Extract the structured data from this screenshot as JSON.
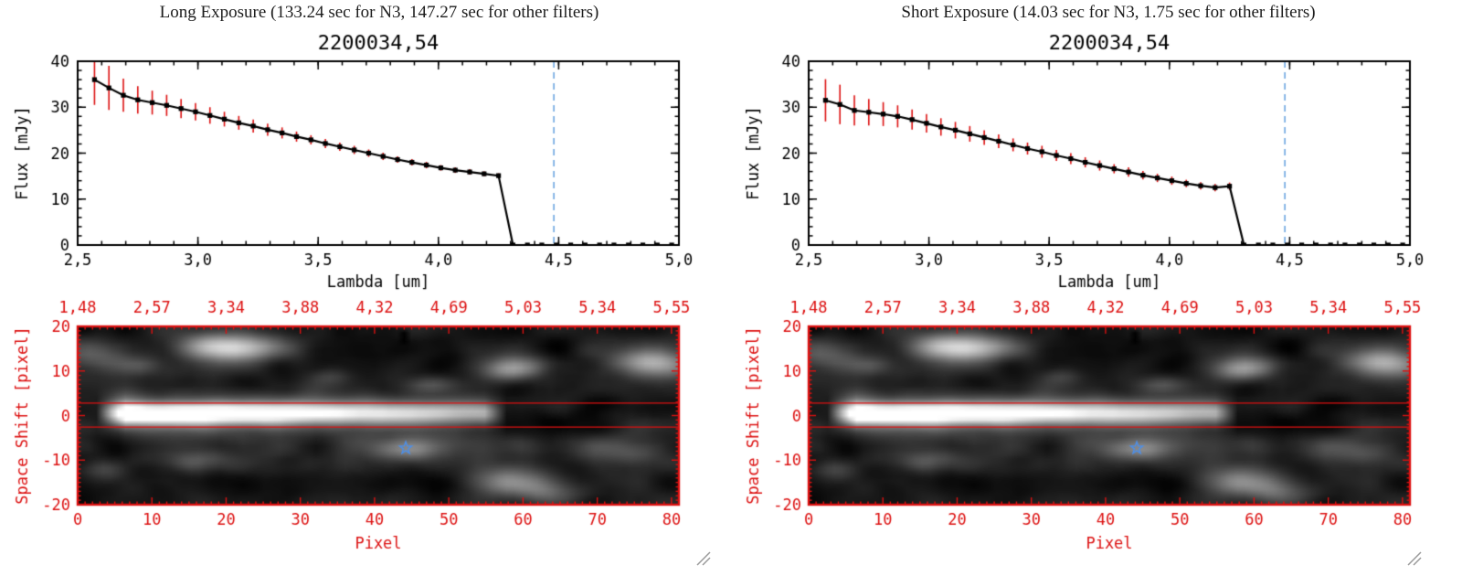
{
  "panels": [
    {
      "id": "long-exposure",
      "header": "Long Exposure (133.24 sec for N3, 147.27 sec for other filters)"
    },
    {
      "id": "short-exposure",
      "header": "Short Exposure (14.03 sec for N3, 1.75 sec for other filters)"
    }
  ],
  "colors": {
    "plot_red": "#dd1111",
    "dashed_blue": "#6ca6e0",
    "star_blue": "#4d8fe8",
    "axis_black": "#000000",
    "background": "#ffffff"
  },
  "chart_data": [
    {
      "type": "line",
      "panel": "long-exposure",
      "title": "2200034,54",
      "xlabel": "Lambda [um]",
      "ylabel": "Flux [mJy]",
      "xlim": [
        2.5,
        5.0
      ],
      "ylim": [
        0,
        40
      ],
      "xtick_values": [
        2.5,
        3.0,
        3.5,
        4.0,
        4.5,
        5.0
      ],
      "xtick_labels": [
        "2,5",
        "3,0",
        "3,5",
        "4,0",
        "4,5",
        "5,0"
      ],
      "ytick_values": [
        0,
        10,
        20,
        30,
        40
      ],
      "marker": "filled-square",
      "vline_x": 4.48,
      "x": [
        2.57,
        2.63,
        2.69,
        2.75,
        2.81,
        2.87,
        2.93,
        2.99,
        3.05,
        3.11,
        3.17,
        3.23,
        3.29,
        3.35,
        3.41,
        3.47,
        3.53,
        3.59,
        3.65,
        3.71,
        3.77,
        3.83,
        3.89,
        3.95,
        4.01,
        4.07,
        4.13,
        4.19,
        4.25,
        4.31,
        4.37,
        4.43,
        4.49,
        4.55,
        4.61,
        4.67,
        4.73,
        4.79,
        4.85,
        4.91,
        4.97
      ],
      "flux": [
        36.0,
        34.2,
        32.6,
        31.6,
        31.0,
        30.4,
        29.7,
        29.0,
        28.2,
        27.4,
        26.6,
        25.9,
        25.1,
        24.4,
        23.6,
        22.9,
        22.1,
        21.4,
        20.7,
        20.0,
        19.3,
        18.6,
        18.0,
        17.4,
        16.8,
        16.3,
        15.9,
        15.5,
        15.1,
        0,
        0,
        0,
        0,
        0,
        0,
        0,
        0,
        0,
        0,
        0,
        0
      ],
      "err": [
        5.5,
        4.8,
        3.6,
        3.0,
        2.6,
        2.3,
        2.1,
        1.9,
        1.8,
        1.6,
        1.5,
        1.4,
        1.3,
        1.2,
        1.1,
        1.0,
        1.0,
        0.9,
        0.9,
        0.8,
        0.8,
        0.7,
        0.7,
        0.7,
        0.6,
        0.6,
        0.6,
        0.5,
        0.5,
        0.3,
        0.3,
        0.3,
        0.3,
        0.3,
        0.3,
        0.3,
        0.3,
        0.3,
        0.3,
        0.3,
        0.3
      ]
    },
    {
      "type": "line",
      "panel": "short-exposure",
      "title": "2200034,54",
      "xlabel": "Lambda [um]",
      "ylabel": "Flux [mJy]",
      "xlim": [
        2.5,
        5.0
      ],
      "ylim": [
        0,
        40
      ],
      "xtick_values": [
        2.5,
        3.0,
        3.5,
        4.0,
        4.5,
        5.0
      ],
      "xtick_labels": [
        "2,5",
        "3,0",
        "3,5",
        "4,0",
        "4,5",
        "5,0"
      ],
      "ytick_values": [
        0,
        10,
        20,
        30,
        40
      ],
      "marker": "filled-square",
      "vline_x": 4.48,
      "x": [
        2.57,
        2.63,
        2.69,
        2.75,
        2.81,
        2.87,
        2.93,
        2.99,
        3.05,
        3.11,
        3.17,
        3.23,
        3.29,
        3.35,
        3.41,
        3.47,
        3.53,
        3.59,
        3.65,
        3.71,
        3.77,
        3.83,
        3.89,
        3.95,
        4.01,
        4.07,
        4.13,
        4.19,
        4.25,
        4.31,
        4.37,
        4.43,
        4.49,
        4.55,
        4.61,
        4.67,
        4.73,
        4.79,
        4.85,
        4.91,
        4.97
      ],
      "flux": [
        31.5,
        30.6,
        29.3,
        28.9,
        28.5,
        28.0,
        27.3,
        26.5,
        25.7,
        25.0,
        24.2,
        23.4,
        22.6,
        21.8,
        21.0,
        20.3,
        19.5,
        18.8,
        18.0,
        17.3,
        16.6,
        15.9,
        15.2,
        14.6,
        14.0,
        13.4,
        12.9,
        12.5,
        12.8,
        0,
        0,
        0,
        0,
        0,
        0,
        0,
        0,
        0,
        0,
        0,
        0
      ],
      "err": [
        4.6,
        4.3,
        3.3,
        2.9,
        2.6,
        2.4,
        2.2,
        2.0,
        1.9,
        1.8,
        1.7,
        1.6,
        1.5,
        1.4,
        1.3,
        1.3,
        1.2,
        1.2,
        1.1,
        1.1,
        1.0,
        1.0,
        0.9,
        0.9,
        0.9,
        0.8,
        0.8,
        0.8,
        0.8,
        0.3,
        0.3,
        0.3,
        0.3,
        0.3,
        0.3,
        0.3,
        0.3,
        0.3,
        0.3,
        0.3,
        0.3
      ]
    },
    {
      "type": "heatmap",
      "panels": [
        "long-exposure",
        "short-exposure"
      ],
      "xlabel": "Pixel",
      "ylabel": "Space Shift [pixel]",
      "xlim": [
        0,
        81
      ],
      "ylim": [
        -20,
        20
      ],
      "xtick_values": [
        0,
        10,
        20,
        30,
        40,
        50,
        60,
        70,
        80
      ],
      "ytick_values": [
        -20,
        -10,
        0,
        10,
        20
      ],
      "top_wavelength_labels": [
        "1,48",
        "2,57",
        "3,34",
        "3,88",
        "4,32",
        "4,69",
        "5,03",
        "5,34",
        "5,55"
      ],
      "aperture_lines_y": [
        2.8,
        -2.6
      ],
      "star": {
        "x": 44.2,
        "y": -7.3
      },
      "noise_seed": 7,
      "trace": {
        "center_y": 0.5,
        "core_sigma": 1.7,
        "halo_sigma": 4.2,
        "x_start": 2,
        "x_peak_start": 6,
        "x_peak_end": 13,
        "x_end": 55,
        "x_tail": 58,
        "decline": 0.52
      },
      "faint_streak": {
        "y": -7,
        "sigma": 2.3,
        "x_from": 32,
        "x_to": 78,
        "amp": 0.09
      },
      "blobs": [
        [
          20.3,
          15.7,
          4.5,
          2.2,
          0.8
        ],
        [
          77.6,
          12.2,
          3.5,
          2.5,
          0.6
        ],
        [
          58.5,
          10.8,
          3.5,
          2.0,
          0.5
        ],
        [
          47.2,
          7.1,
          2.8,
          1.4,
          0.18
        ],
        [
          44.7,
          -7.7,
          3.0,
          1.8,
          0.32
        ],
        [
          58.5,
          -15.3,
          3.5,
          2.3,
          0.55
        ],
        [
          64.0,
          -17.5,
          3.0,
          2.0,
          0.25
        ],
        [
          14.8,
          -10.4,
          4.0,
          1.8,
          0.2
        ],
        [
          2.5,
          -12.4,
          2.5,
          1.6,
          0.2
        ],
        [
          74.5,
          -8.3,
          4.0,
          2.0,
          0.2
        ],
        [
          1.2,
          14.3,
          3.0,
          2.2,
          0.28
        ],
        [
          7.4,
          11.6,
          2.5,
          1.5,
          0.2
        ],
        [
          33.9,
          9.1,
          2.5,
          1.3,
          0.13
        ]
      ],
      "dark_spot": {
        "x": 44,
        "y_from": 17,
        "y_to": 19
      }
    }
  ]
}
